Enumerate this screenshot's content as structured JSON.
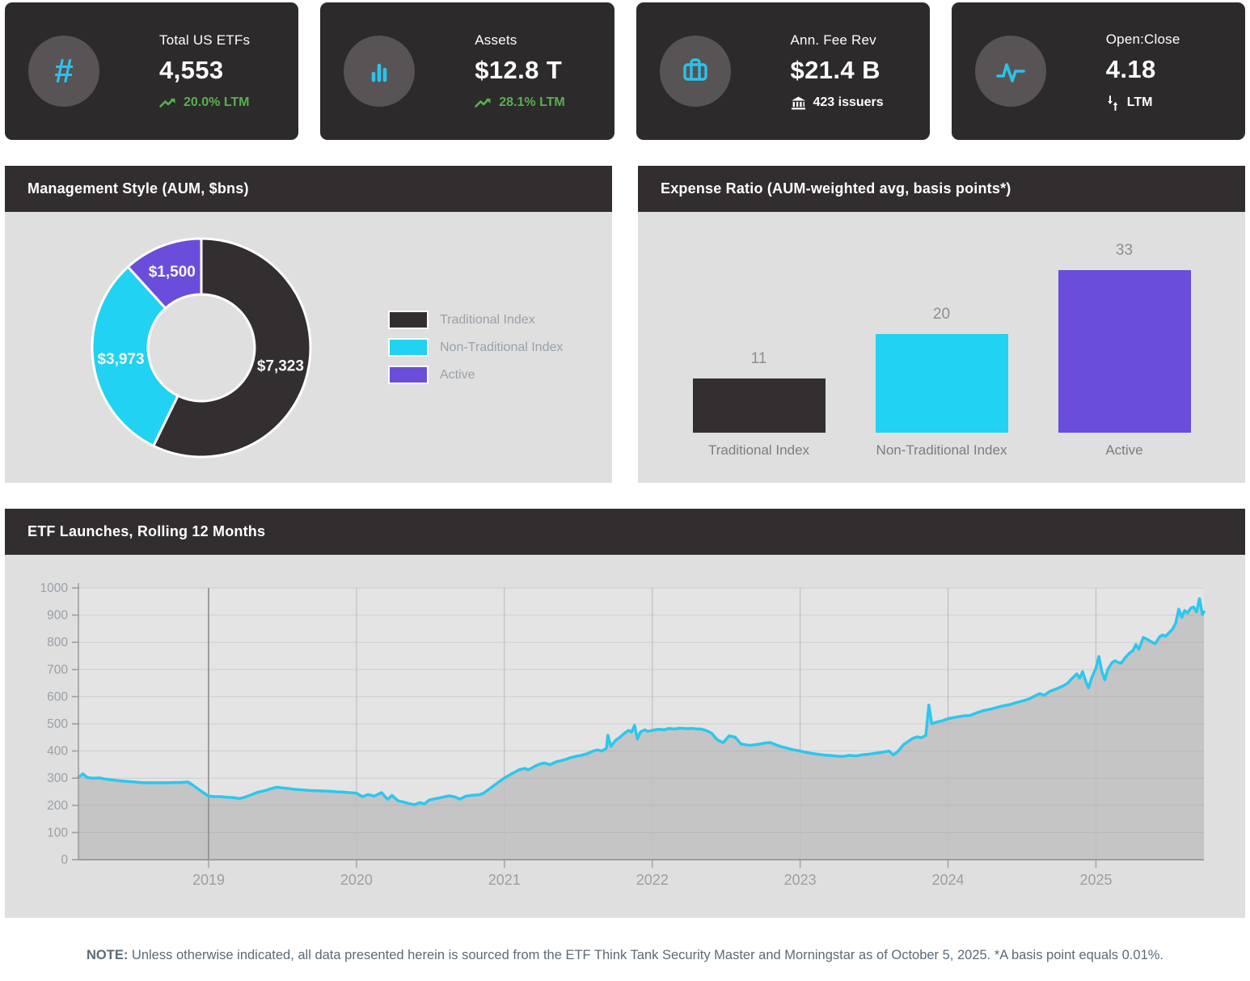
{
  "kpi_cards": [
    {
      "title": "Total US ETFs",
      "value": "4,553",
      "sub": "20.0% LTM"
    },
    {
      "title": "Assets",
      "value": "$12.8 T",
      "sub": "28.1% LTM"
    },
    {
      "title": "Ann. Fee Rev",
      "value": "$21.4 B",
      "sub": "423 issuers"
    },
    {
      "title": "Open:Close",
      "value": "4.18",
      "sub": "LTM"
    }
  ],
  "panels": {
    "management_style_title": "Management Style (AUM, $bns)",
    "expense_ratio_title": "Expense Ratio (AUM-weighted avg, basis points*)",
    "etf_launches_title": "ETF Launches, Rolling 12 Months"
  },
  "note": {
    "label": "NOTE:",
    "text": " Unless otherwise indicated, all data presented herein is sourced from the ETF Think Tank Security Master and Morningstar as of October 5, 2025. *A basis point equals 0.01%."
  },
  "colors": {
    "card_bg": "#2d2a2b",
    "icon_circle": "#585455",
    "icon_cyan": "#2bc2ec",
    "green": "#58b14e",
    "header_bg": "#322e2f",
    "panel_body": "#dfdfdf",
    "dark_series": "#332e30",
    "cyan_series": "#21d2f2",
    "purple_series": "#6b4ddb"
  },
  "chart_data": [
    {
      "type": "pie",
      "subtype": "donut",
      "title": "Management Style (AUM, $bns)",
      "categories": [
        "Traditional Index",
        "Non-Traditional Index",
        "Active"
      ],
      "values": [
        7323,
        3973,
        1500
      ],
      "labels": [
        "$7,323",
        "$3,973",
        "$1,500"
      ],
      "colors": [
        "#332e30",
        "#21d2f2",
        "#6b4ddb"
      ],
      "legend_position": "right",
      "label_color": "#f5f5f5"
    },
    {
      "type": "bar",
      "title": "Expense Ratio (AUM-weighted avg, basis points*)",
      "categories": [
        "Traditional Index",
        "Non-Traditional Index",
        "Active"
      ],
      "values": [
        11,
        20,
        33
      ],
      "colors": [
        "#332e30",
        "#21d2f2",
        "#6b4ddb"
      ],
      "ylim": [
        0,
        35
      ],
      "data_labels": true,
      "grid": false
    },
    {
      "type": "area",
      "title": "ETF Launches, Rolling 12 Months",
      "xlabel": "",
      "ylabel": "",
      "ylim": [
        0,
        1000
      ],
      "y_ticks": [
        0,
        100,
        200,
        300,
        400,
        500,
        600,
        700,
        800,
        900,
        1000
      ],
      "x_year_labels": [
        2019,
        2020,
        2021,
        2022,
        2023,
        2024,
        2025
      ],
      "x_range": [
        2018.12,
        2025.73
      ],
      "emphasized_year": 2019,
      "grid": true,
      "legend_position": "none",
      "line_color": "#2bc7f0",
      "fill_color": "rgba(150,150,150,0.40)",
      "plot_bg": "#e5e4e4",
      "grid_color": "#cdcdcd",
      "vline_color": "#bfbfbf",
      "vline_emphasis_color": "#8c8c8c",
      "axis_color": "#9e9e9e",
      "tick_text_color": "#9aa0a6",
      "points": [
        [
          2018.12,
          303
        ],
        [
          2018.15,
          316
        ],
        [
          2018.18,
          302
        ],
        [
          2018.22,
          300
        ],
        [
          2018.26,
          301
        ],
        [
          2018.3,
          297
        ],
        [
          2018.36,
          293
        ],
        [
          2018.41,
          290
        ],
        [
          2018.45,
          288
        ],
        [
          2018.5,
          286
        ],
        [
          2018.54,
          284
        ],
        [
          2018.58,
          283
        ],
        [
          2018.63,
          283
        ],
        [
          2018.68,
          283
        ],
        [
          2018.72,
          283
        ],
        [
          2018.77,
          284
        ],
        [
          2018.81,
          284
        ],
        [
          2018.86,
          286
        ],
        [
          2018.9,
          272
        ],
        [
          2018.95,
          252
        ],
        [
          2019.0,
          234
        ],
        [
          2019.04,
          232
        ],
        [
          2019.08,
          232
        ],
        [
          2019.12,
          230
        ],
        [
          2019.16,
          229
        ],
        [
          2019.21,
          225
        ],
        [
          2019.25,
          231
        ],
        [
          2019.29,
          239
        ],
        [
          2019.33,
          248
        ],
        [
          2019.38,
          254
        ],
        [
          2019.42,
          261
        ],
        [
          2019.46,
          267
        ],
        [
          2019.5,
          264
        ],
        [
          2019.54,
          262
        ],
        [
          2019.58,
          259
        ],
        [
          2019.63,
          257
        ],
        [
          2019.67,
          255
        ],
        [
          2019.72,
          254
        ],
        [
          2019.77,
          253
        ],
        [
          2019.81,
          252
        ],
        [
          2019.86,
          250
        ],
        [
          2019.9,
          249
        ],
        [
          2019.95,
          247
        ],
        [
          2020.0,
          245
        ],
        [
          2020.04,
          232
        ],
        [
          2020.08,
          240
        ],
        [
          2020.12,
          234
        ],
        [
          2020.17,
          247
        ],
        [
          2020.21,
          222
        ],
        [
          2020.24,
          237
        ],
        [
          2020.28,
          217
        ],
        [
          2020.32,
          212
        ],
        [
          2020.35,
          207
        ],
        [
          2020.39,
          202
        ],
        [
          2020.43,
          210
        ],
        [
          2020.46,
          205
        ],
        [
          2020.49,
          219
        ],
        [
          2020.53,
          224
        ],
        [
          2020.56,
          227
        ],
        [
          2020.6,
          232
        ],
        [
          2020.63,
          235
        ],
        [
          2020.67,
          230
        ],
        [
          2020.7,
          223
        ],
        [
          2020.74,
          234
        ],
        [
          2020.78,
          237
        ],
        [
          2020.83,
          239
        ],
        [
          2020.86,
          245
        ],
        [
          2020.89,
          257
        ],
        [
          2020.94,
          277
        ],
        [
          2021.0,
          301
        ],
        [
          2021.05,
          316
        ],
        [
          2021.1,
          331
        ],
        [
          2021.14,
          336
        ],
        [
          2021.16,
          330
        ],
        [
          2021.21,
          345
        ],
        [
          2021.24,
          352
        ],
        [
          2021.27,
          356
        ],
        [
          2021.31,
          350
        ],
        [
          2021.35,
          360
        ],
        [
          2021.38,
          364
        ],
        [
          2021.42,
          370
        ],
        [
          2021.45,
          376
        ],
        [
          2021.49,
          381
        ],
        [
          2021.52,
          384
        ],
        [
          2021.56,
          390
        ],
        [
          2021.6,
          400
        ],
        [
          2021.63,
          404
        ],
        [
          2021.66,
          400
        ],
        [
          2021.69,
          410
        ],
        [
          2021.7,
          458
        ],
        [
          2021.72,
          417
        ],
        [
          2021.75,
          438
        ],
        [
          2021.78,
          450
        ],
        [
          2021.81,
          465
        ],
        [
          2021.84,
          476
        ],
        [
          2021.86,
          470
        ],
        [
          2021.88,
          494
        ],
        [
          2021.9,
          444
        ],
        [
          2021.92,
          470
        ],
        [
          2021.95,
          478
        ],
        [
          2021.97,
          472
        ],
        [
          2022.0,
          476
        ],
        [
          2022.04,
          480
        ],
        [
          2022.08,
          478
        ],
        [
          2022.11,
          483
        ],
        [
          2022.15,
          481
        ],
        [
          2022.19,
          484
        ],
        [
          2022.23,
          482
        ],
        [
          2022.27,
          483
        ],
        [
          2022.3,
          481
        ],
        [
          2022.33,
          481
        ],
        [
          2022.37,
          474
        ],
        [
          2022.4,
          466
        ],
        [
          2022.44,
          441
        ],
        [
          2022.48,
          431
        ],
        [
          2022.52,
          456
        ],
        [
          2022.56,
          451
        ],
        [
          2022.6,
          426
        ],
        [
          2022.64,
          422
        ],
        [
          2022.67,
          421
        ],
        [
          2022.71,
          424
        ],
        [
          2022.73,
          426
        ],
        [
          2022.77,
          430
        ],
        [
          2022.8,
          431
        ],
        [
          2022.84,
          422
        ],
        [
          2022.87,
          416
        ],
        [
          2022.91,
          411
        ],
        [
          2022.94,
          406
        ],
        [
          2023.0,
          400
        ],
        [
          2023.03,
          396
        ],
        [
          2023.08,
          391
        ],
        [
          2023.12,
          388
        ],
        [
          2023.16,
          385
        ],
        [
          2023.21,
          383
        ],
        [
          2023.25,
          381
        ],
        [
          2023.29,
          380
        ],
        [
          2023.33,
          384
        ],
        [
          2023.38,
          382
        ],
        [
          2023.42,
          386
        ],
        [
          2023.46,
          388
        ],
        [
          2023.5,
          391
        ],
        [
          2023.54,
          394
        ],
        [
          2023.58,
          398
        ],
        [
          2023.6,
          400
        ],
        [
          2023.63,
          386
        ],
        [
          2023.66,
          398
        ],
        [
          2023.7,
          424
        ],
        [
          2023.73,
          435
        ],
        [
          2023.76,
          446
        ],
        [
          2023.79,
          452
        ],
        [
          2023.82,
          449
        ],
        [
          2023.85,
          458
        ],
        [
          2023.87,
          569
        ],
        [
          2023.89,
          500
        ],
        [
          2023.92,
          506
        ],
        [
          2023.96,
          511
        ],
        [
          2024.0,
          519
        ],
        [
          2024.05,
          524
        ],
        [
          2024.1,
          529
        ],
        [
          2024.15,
          531
        ],
        [
          2024.19,
          540
        ],
        [
          2024.24,
          549
        ],
        [
          2024.28,
          553
        ],
        [
          2024.33,
          560
        ],
        [
          2024.37,
          566
        ],
        [
          2024.42,
          571
        ],
        [
          2024.46,
          578
        ],
        [
          2024.51,
          585
        ],
        [
          2024.55,
          592
        ],
        [
          2024.58,
          601
        ],
        [
          2024.62,
          611
        ],
        [
          2024.65,
          605
        ],
        [
          2024.69,
          620
        ],
        [
          2024.73,
          628
        ],
        [
          2024.78,
          640
        ],
        [
          2024.81,
          650
        ],
        [
          2024.84,
          668
        ],
        [
          2024.87,
          684
        ],
        [
          2024.89,
          668
        ],
        [
          2024.91,
          692
        ],
        [
          2024.93,
          658
        ],
        [
          2024.95,
          632
        ],
        [
          2024.97,
          668
        ],
        [
          2025.0,
          705
        ],
        [
          2025.02,
          748
        ],
        [
          2025.04,
          692
        ],
        [
          2025.06,
          662
        ],
        [
          2025.08,
          700
        ],
        [
          2025.11,
          726
        ],
        [
          2025.13,
          732
        ],
        [
          2025.15,
          726
        ],
        [
          2025.17,
          723
        ],
        [
          2025.2,
          745
        ],
        [
          2025.23,
          762
        ],
        [
          2025.25,
          770
        ],
        [
          2025.27,
          792
        ],
        [
          2025.29,
          774
        ],
        [
          2025.32,
          818
        ],
        [
          2025.35,
          810
        ],
        [
          2025.38,
          800
        ],
        [
          2025.4,
          795
        ],
        [
          2025.43,
          820
        ],
        [
          2025.45,
          827
        ],
        [
          2025.47,
          822
        ],
        [
          2025.5,
          838
        ],
        [
          2025.52,
          850
        ],
        [
          2025.54,
          872
        ],
        [
          2025.56,
          922
        ],
        [
          2025.58,
          892
        ],
        [
          2025.6,
          917
        ],
        [
          2025.62,
          908
        ],
        [
          2025.64,
          925
        ],
        [
          2025.66,
          930
        ],
        [
          2025.68,
          912
        ],
        [
          2025.7,
          961
        ],
        [
          2025.72,
          902
        ],
        [
          2025.73,
          912
        ]
      ]
    }
  ]
}
